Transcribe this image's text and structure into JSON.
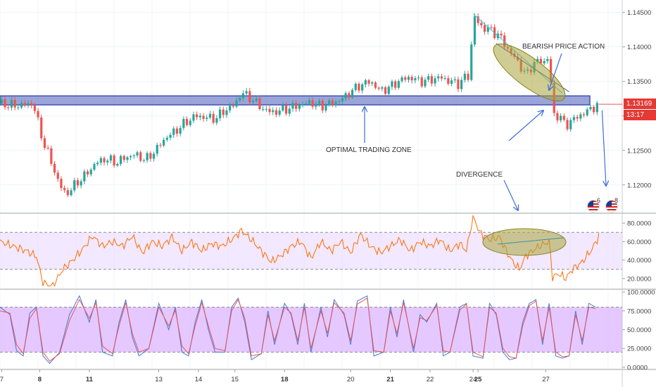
{
  "chart_data": [
    {
      "type": "candlestick",
      "title": "",
      "annotations": [
        "BEARISH PRICE ACTION",
        "OPTIMAL TRADING ZONE",
        "DIVERGENCE"
      ],
      "y_ticks": [
        "1.14500",
        "1.14000",
        "1.13500",
        "1.13000",
        "1.12500",
        "1.12000"
      ],
      "ylim": [
        1.116,
        1.1468
      ],
      "current_price": "1.13169",
      "countdown": "13:17",
      "zone": [
        1.1316,
        1.1329
      ],
      "path": [
        [
          0,
          1.1318
        ],
        [
          4,
          1.1315
        ],
        [
          8,
          1.1316
        ],
        [
          10,
          1.1318
        ],
        [
          11,
          1.13
        ],
        [
          13,
          1.1263
        ],
        [
          15,
          1.124
        ],
        [
          18,
          1.12
        ],
        [
          20,
          1.1186
        ],
        [
          23,
          1.1202
        ],
        [
          26,
          1.1215
        ],
        [
          29,
          1.1232
        ],
        [
          32,
          1.1238
        ],
        [
          35,
          1.1232
        ],
        [
          38,
          1.124
        ],
        [
          41,
          1.1244
        ],
        [
          44,
          1.1236
        ],
        [
          47,
          1.125
        ],
        [
          50,
          1.1268
        ],
        [
          53,
          1.1278
        ],
        [
          56,
          1.129
        ],
        [
          59,
          1.13
        ],
        [
          62,
          1.1298
        ],
        [
          65,
          1.1296
        ],
        [
          68,
          1.1308
        ],
        [
          71,
          1.1316
        ],
        [
          73,
          1.1334
        ],
        [
          76,
          1.1325
        ],
        [
          79,
          1.1312
        ],
        [
          82,
          1.1305
        ],
        [
          85,
          1.1308
        ],
        [
          88,
          1.1312
        ],
        [
          91,
          1.1316
        ],
        [
          94,
          1.132
        ],
        [
          97,
          1.1314
        ],
        [
          100,
          1.1318
        ],
        [
          103,
          1.1323
        ],
        [
          106,
          1.1335
        ],
        [
          109,
          1.1345
        ],
        [
          112,
          1.135
        ],
        [
          115,
          1.1336
        ],
        [
          118,
          1.1342
        ],
        [
          121,
          1.1352
        ],
        [
          124,
          1.1356
        ],
        [
          127,
          1.135
        ],
        [
          130,
          1.1352
        ],
        [
          133,
          1.1356
        ],
        [
          136,
          1.135
        ],
        [
          139,
          1.1346
        ],
        [
          140,
          1.1355
        ],
        [
          142,
          1.1358
        ],
        [
          143,
          1.1448
        ],
        [
          145,
          1.143
        ],
        [
          148,
          1.1425
        ],
        [
          151,
          1.1416
        ],
        [
          153,
          1.14
        ],
        [
          155,
          1.1388
        ],
        [
          157,
          1.1375
        ],
        [
          159,
          1.1358
        ],
        [
          161,
          1.1375
        ],
        [
          163,
          1.138
        ],
        [
          165,
          1.1378
        ],
        [
          166,
          1.139
        ],
        [
          167,
          1.1302
        ],
        [
          169,
          1.13
        ],
        [
          171,
          1.1286
        ],
        [
          173,
          1.1294
        ],
        [
          175,
          1.13
        ],
        [
          177,
          1.1305
        ],
        [
          179,
          1.1312
        ],
        [
          181,
          1.1316
        ]
      ]
    },
    {
      "type": "line",
      "indicator": "rsi",
      "y_ticks": [
        "80.0000",
        "60.0000",
        "40.0000",
        "20.0000"
      ],
      "ylim": [
        10,
        90
      ],
      "band": [
        30,
        70
      ],
      "path": [
        [
          0,
          60
        ],
        [
          4,
          55
        ],
        [
          8,
          50
        ],
        [
          11,
          44
        ],
        [
          13,
          15
        ],
        [
          16,
          12
        ],
        [
          19,
          30
        ],
        [
          22,
          40
        ],
        [
          25,
          52
        ],
        [
          28,
          66
        ],
        [
          31,
          55
        ],
        [
          34,
          60
        ],
        [
          37,
          55
        ],
        [
          40,
          66
        ],
        [
          43,
          48
        ],
        [
          46,
          60
        ],
        [
          49,
          55
        ],
        [
          52,
          65
        ],
        [
          55,
          50
        ],
        [
          58,
          60
        ],
        [
          61,
          50
        ],
        [
          64,
          58
        ],
        [
          67,
          55
        ],
        [
          70,
          62
        ],
        [
          73,
          72
        ],
        [
          76,
          62
        ],
        [
          79,
          50
        ],
        [
          82,
          38
        ],
        [
          85,
          45
        ],
        [
          88,
          55
        ],
        [
          91,
          60
        ],
        [
          94,
          42
        ],
        [
          97,
          60
        ],
        [
          100,
          50
        ],
        [
          103,
          60
        ],
        [
          106,
          48
        ],
        [
          109,
          68
        ],
        [
          112,
          55
        ],
        [
          115,
          48
        ],
        [
          118,
          55
        ],
        [
          121,
          62
        ],
        [
          124,
          50
        ],
        [
          127,
          60
        ],
        [
          130,
          55
        ],
        [
          133,
          62
        ],
        [
          136,
          50
        ],
        [
          139,
          58
        ],
        [
          141,
          50
        ],
        [
          143,
          88
        ],
        [
          145,
          70
        ],
        [
          148,
          62
        ],
        [
          151,
          65
        ],
        [
          153,
          50
        ],
        [
          155,
          38
        ],
        [
          157,
          30
        ],
        [
          159,
          45
        ],
        [
          161,
          50
        ],
        [
          163,
          55
        ],
        [
          166,
          60
        ],
        [
          167,
          22
        ],
        [
          169,
          25
        ],
        [
          171,
          20
        ],
        [
          173,
          30
        ],
        [
          176,
          38
        ],
        [
          179,
          52
        ],
        [
          181,
          66
        ]
      ]
    },
    {
      "type": "line",
      "indicator": "stochastic",
      "y_ticks": [
        "100.0000",
        "75.0000",
        "50.0000",
        "25.0000",
        "0.0000"
      ],
      "ylim": [
        -2,
        102
      ],
      "band": [
        20,
        80
      ],
      "series": [
        {
          "color": "#3d7ddb",
          "path": [
            [
              0,
              80
            ],
            [
              3,
              70
            ],
            [
              5,
              22
            ],
            [
              7,
              15
            ],
            [
              9,
              72
            ],
            [
              11,
              80
            ],
            [
              13,
              15
            ],
            [
              15,
              5
            ],
            [
              18,
              20
            ],
            [
              21,
              70
            ],
            [
              24,
              95
            ],
            [
              27,
              60
            ],
            [
              29,
              90
            ],
            [
              31,
              20
            ],
            [
              34,
              15
            ],
            [
              36,
              60
            ],
            [
              38,
              90
            ],
            [
              40,
              40
            ],
            [
              42,
              15
            ],
            [
              45,
              25
            ],
            [
              48,
              85
            ],
            [
              51,
              50
            ],
            [
              53,
              80
            ],
            [
              55,
              20
            ],
            [
              57,
              15
            ],
            [
              59,
              60
            ],
            [
              61,
              90
            ],
            [
              63,
              50
            ],
            [
              65,
              20
            ],
            [
              68,
              20
            ],
            [
              70,
              80
            ],
            [
              72,
              92
            ],
            [
              74,
              60
            ],
            [
              76,
              10
            ],
            [
              79,
              18
            ],
            [
              81,
              75
            ],
            [
              83,
              30
            ],
            [
              86,
              85
            ],
            [
              88,
              70
            ],
            [
              90,
              30
            ],
            [
              92,
              85
            ],
            [
              94,
              20
            ],
            [
              97,
              80
            ],
            [
              99,
              40
            ],
            [
              101,
              90
            ],
            [
              104,
              70
            ],
            [
              106,
              30
            ],
            [
              108,
              88
            ],
            [
              111,
              95
            ],
            [
              113,
              15
            ],
            [
              116,
              20
            ],
            [
              118,
              80
            ],
            [
              120,
              40
            ],
            [
              122,
              90
            ],
            [
              125,
              20
            ],
            [
              127,
              70
            ],
            [
              129,
              60
            ],
            [
              132,
              85
            ],
            [
              134,
              15
            ],
            [
              136,
              20
            ],
            [
              139,
              80
            ],
            [
              141,
              85
            ],
            [
              143,
              15
            ],
            [
              146,
              12
            ],
            [
              148,
              85
            ],
            [
              150,
              70
            ],
            [
              152,
              20
            ],
            [
              154,
              10
            ],
            [
              156,
              12
            ],
            [
              158,
              60
            ],
            [
              160,
              85
            ],
            [
              162,
              90
            ],
            [
              164,
              30
            ],
            [
              166,
              85
            ],
            [
              168,
              15
            ],
            [
              170,
              12
            ],
            [
              172,
              15
            ],
            [
              174,
              75
            ],
            [
              176,
              30
            ],
            [
              178,
              85
            ],
            [
              180,
              80
            ]
          ]
        },
        {
          "color": "#ef5350",
          "path": [
            [
              0,
              75
            ],
            [
              3,
              72
            ],
            [
              5,
              30
            ],
            [
              7,
              18
            ],
            [
              9,
              65
            ],
            [
              11,
              78
            ],
            [
              13,
              20
            ],
            [
              15,
              8
            ],
            [
              18,
              18
            ],
            [
              21,
              62
            ],
            [
              24,
              90
            ],
            [
              27,
              65
            ],
            [
              29,
              86
            ],
            [
              31,
              28
            ],
            [
              34,
              18
            ],
            [
              36,
              55
            ],
            [
              38,
              86
            ],
            [
              40,
              45
            ],
            [
              42,
              20
            ],
            [
              45,
              25
            ],
            [
              48,
              80
            ],
            [
              51,
              55
            ],
            [
              53,
              76
            ],
            [
              55,
              28
            ],
            [
              57,
              18
            ],
            [
              59,
              55
            ],
            [
              61,
              86
            ],
            [
              63,
              55
            ],
            [
              65,
              25
            ],
            [
              68,
              22
            ],
            [
              70,
              75
            ],
            [
              72,
              90
            ],
            [
              74,
              65
            ],
            [
              76,
              15
            ],
            [
              79,
              18
            ],
            [
              81,
              70
            ],
            [
              83,
              35
            ],
            [
              86,
              80
            ],
            [
              88,
              72
            ],
            [
              90,
              35
            ],
            [
              92,
              80
            ],
            [
              94,
              25
            ],
            [
              97,
              75
            ],
            [
              99,
              45
            ],
            [
              101,
              86
            ],
            [
              104,
              72
            ],
            [
              106,
              35
            ],
            [
              108,
              84
            ],
            [
              111,
              92
            ],
            [
              113,
              22
            ],
            [
              116,
              20
            ],
            [
              118,
              75
            ],
            [
              120,
              45
            ],
            [
              122,
              86
            ],
            [
              125,
              25
            ],
            [
              127,
              66
            ],
            [
              129,
              62
            ],
            [
              132,
              82
            ],
            [
              134,
              22
            ],
            [
              136,
              20
            ],
            [
              139,
              76
            ],
            [
              141,
              84
            ],
            [
              143,
              20
            ],
            [
              146,
              14
            ],
            [
              148,
              80
            ],
            [
              150,
              72
            ],
            [
              152,
              25
            ],
            [
              154,
              14
            ],
            [
              156,
              12
            ],
            [
              158,
              55
            ],
            [
              160,
              82
            ],
            [
              162,
              88
            ],
            [
              164,
              35
            ],
            [
              166,
              80
            ],
            [
              168,
              20
            ],
            [
              170,
              14
            ],
            [
              172,
              15
            ],
            [
              174,
              70
            ],
            [
              176,
              35
            ],
            [
              178,
              80
            ],
            [
              180,
              78
            ]
          ]
        }
      ]
    }
  ],
  "x_axis": {
    "labels": [
      {
        "text": "7",
        "pos": 0.5
      },
      {
        "text": "8",
        "pos": 12
      },
      {
        "text": "11",
        "pos": 27
      },
      {
        "text": "13",
        "pos": 48
      },
      {
        "text": "14",
        "pos": 60
      },
      {
        "text": "15",
        "pos": 71
      },
      {
        "text": "18",
        "pos": 86
      },
      {
        "text": "20",
        "pos": 106
      },
      {
        "text": "21",
        "pos": 118
      },
      {
        "text": "22",
        "pos": 130
      },
      {
        "text": "24",
        "pos": 143
      },
      {
        "text": "25",
        "pos": 144.5
      },
      {
        "text": "27",
        "pos": 165
      }
    ]
  },
  "events": [
    {
      "count": "6"
    },
    {
      "count": "8"
    }
  ],
  "colors": {
    "up": "#26a69a",
    "down": "#ef5350",
    "zone": "#3f51b5",
    "ellipse": "#a8a43a",
    "arrow": "#3d6fd8",
    "rsi": "#ff6d00",
    "band": "#e9d8ff"
  }
}
